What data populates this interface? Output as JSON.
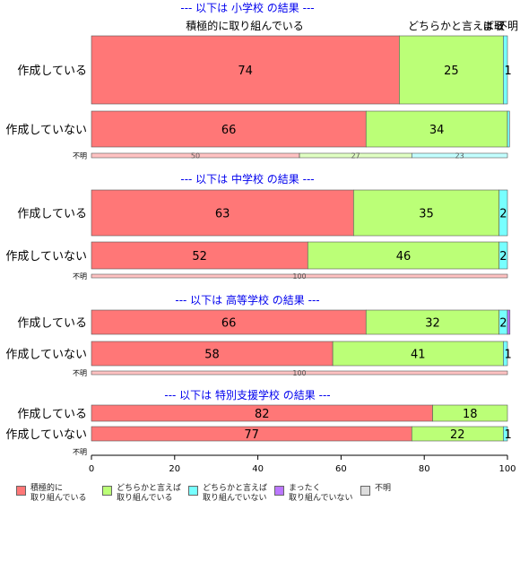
{
  "chart_data": {
    "type": "bar",
    "orientation": "horizontal",
    "stacked": true,
    "xlim": [
      0,
      100
    ],
    "xticks": [
      "0",
      "20",
      "40",
      "60",
      "80",
      "100"
    ],
    "header_labels": [
      "積極的に取り組んでいる",
      "どちらかと言えば取",
      "まっ",
      "不明"
    ],
    "series": [
      {
        "name": "積極的に\n取り組んでいる",
        "color": "#ff7777"
      },
      {
        "name": "どちらかと言えば\n取り組んでいる",
        "color": "#bbff77"
      },
      {
        "name": "どちらかと言えば\n取り組んでいない",
        "color": "#77ffff"
      },
      {
        "name": "まったく\n取り組んでいない",
        "color": "#bb77ff"
      },
      {
        "name": "不明",
        "color": "#dddddd"
      }
    ],
    "panels": [
      {
        "title": "--- 以下は 小学校 の結果 ---",
        "rows": [
          {
            "label": "作成している",
            "values": [
              74,
              25,
              1,
              0,
              0
            ],
            "labels": [
              "74",
              "25",
              "1",
              "",
              ""
            ]
          },
          {
            "label": "作成していない",
            "values": [
              66,
              34,
              0.5,
              0,
              0
            ],
            "labels": [
              "66",
              "34",
              "",
              "",
              ""
            ]
          },
          {
            "label": "不明",
            "values": [
              50,
              27,
              23,
              0,
              0
            ],
            "labels": [
              "50",
              "27",
              "23",
              "",
              ""
            ]
          }
        ]
      },
      {
        "title": "--- 以下は 中学校 の結果 ---",
        "rows": [
          {
            "label": "作成している",
            "values": [
              63,
              35,
              2,
              0,
              0
            ],
            "labels": [
              "63",
              "35",
              "2",
              "",
              ""
            ]
          },
          {
            "label": "作成していない",
            "values": [
              52,
              46,
              2,
              0,
              0
            ],
            "labels": [
              "52",
              "46",
              "2",
              "",
              ""
            ]
          },
          {
            "label": "不明",
            "values": [
              100,
              0,
              0,
              0,
              0
            ],
            "labels": [
              "100",
              "",
              "",
              "",
              ""
            ]
          }
        ]
      },
      {
        "title": "--- 以下は 高等学校 の結果 ---",
        "rows": [
          {
            "label": "作成している",
            "values": [
              66,
              32,
              2,
              0.6,
              0
            ],
            "labels": [
              "66",
              "32",
              "2",
              "",
              ""
            ]
          },
          {
            "label": "作成していない",
            "values": [
              58,
              41,
              1,
              0,
              0
            ],
            "labels": [
              "58",
              "41",
              "1",
              "",
              ""
            ]
          },
          {
            "label": "不明",
            "values": [
              100,
              0,
              0,
              0,
              0
            ],
            "labels": [
              "100",
              "",
              "",
              "",
              ""
            ]
          }
        ]
      },
      {
        "title": "--- 以下は 特別支援学校 の結果 ---",
        "rows": [
          {
            "label": "作成している",
            "values": [
              82,
              18,
              0,
              0,
              0
            ],
            "labels": [
              "82",
              "18",
              "",
              "",
              ""
            ]
          },
          {
            "label": "作成していない",
            "values": [
              77,
              22,
              1,
              0,
              0
            ],
            "labels": [
              "77",
              "22",
              "1",
              "",
              ""
            ]
          },
          {
            "label": "不明",
            "values": [
              0,
              0,
              0,
              0,
              0
            ],
            "labels": [
              "",
              "",
              "",
              "",
              ""
            ]
          }
        ]
      }
    ]
  }
}
